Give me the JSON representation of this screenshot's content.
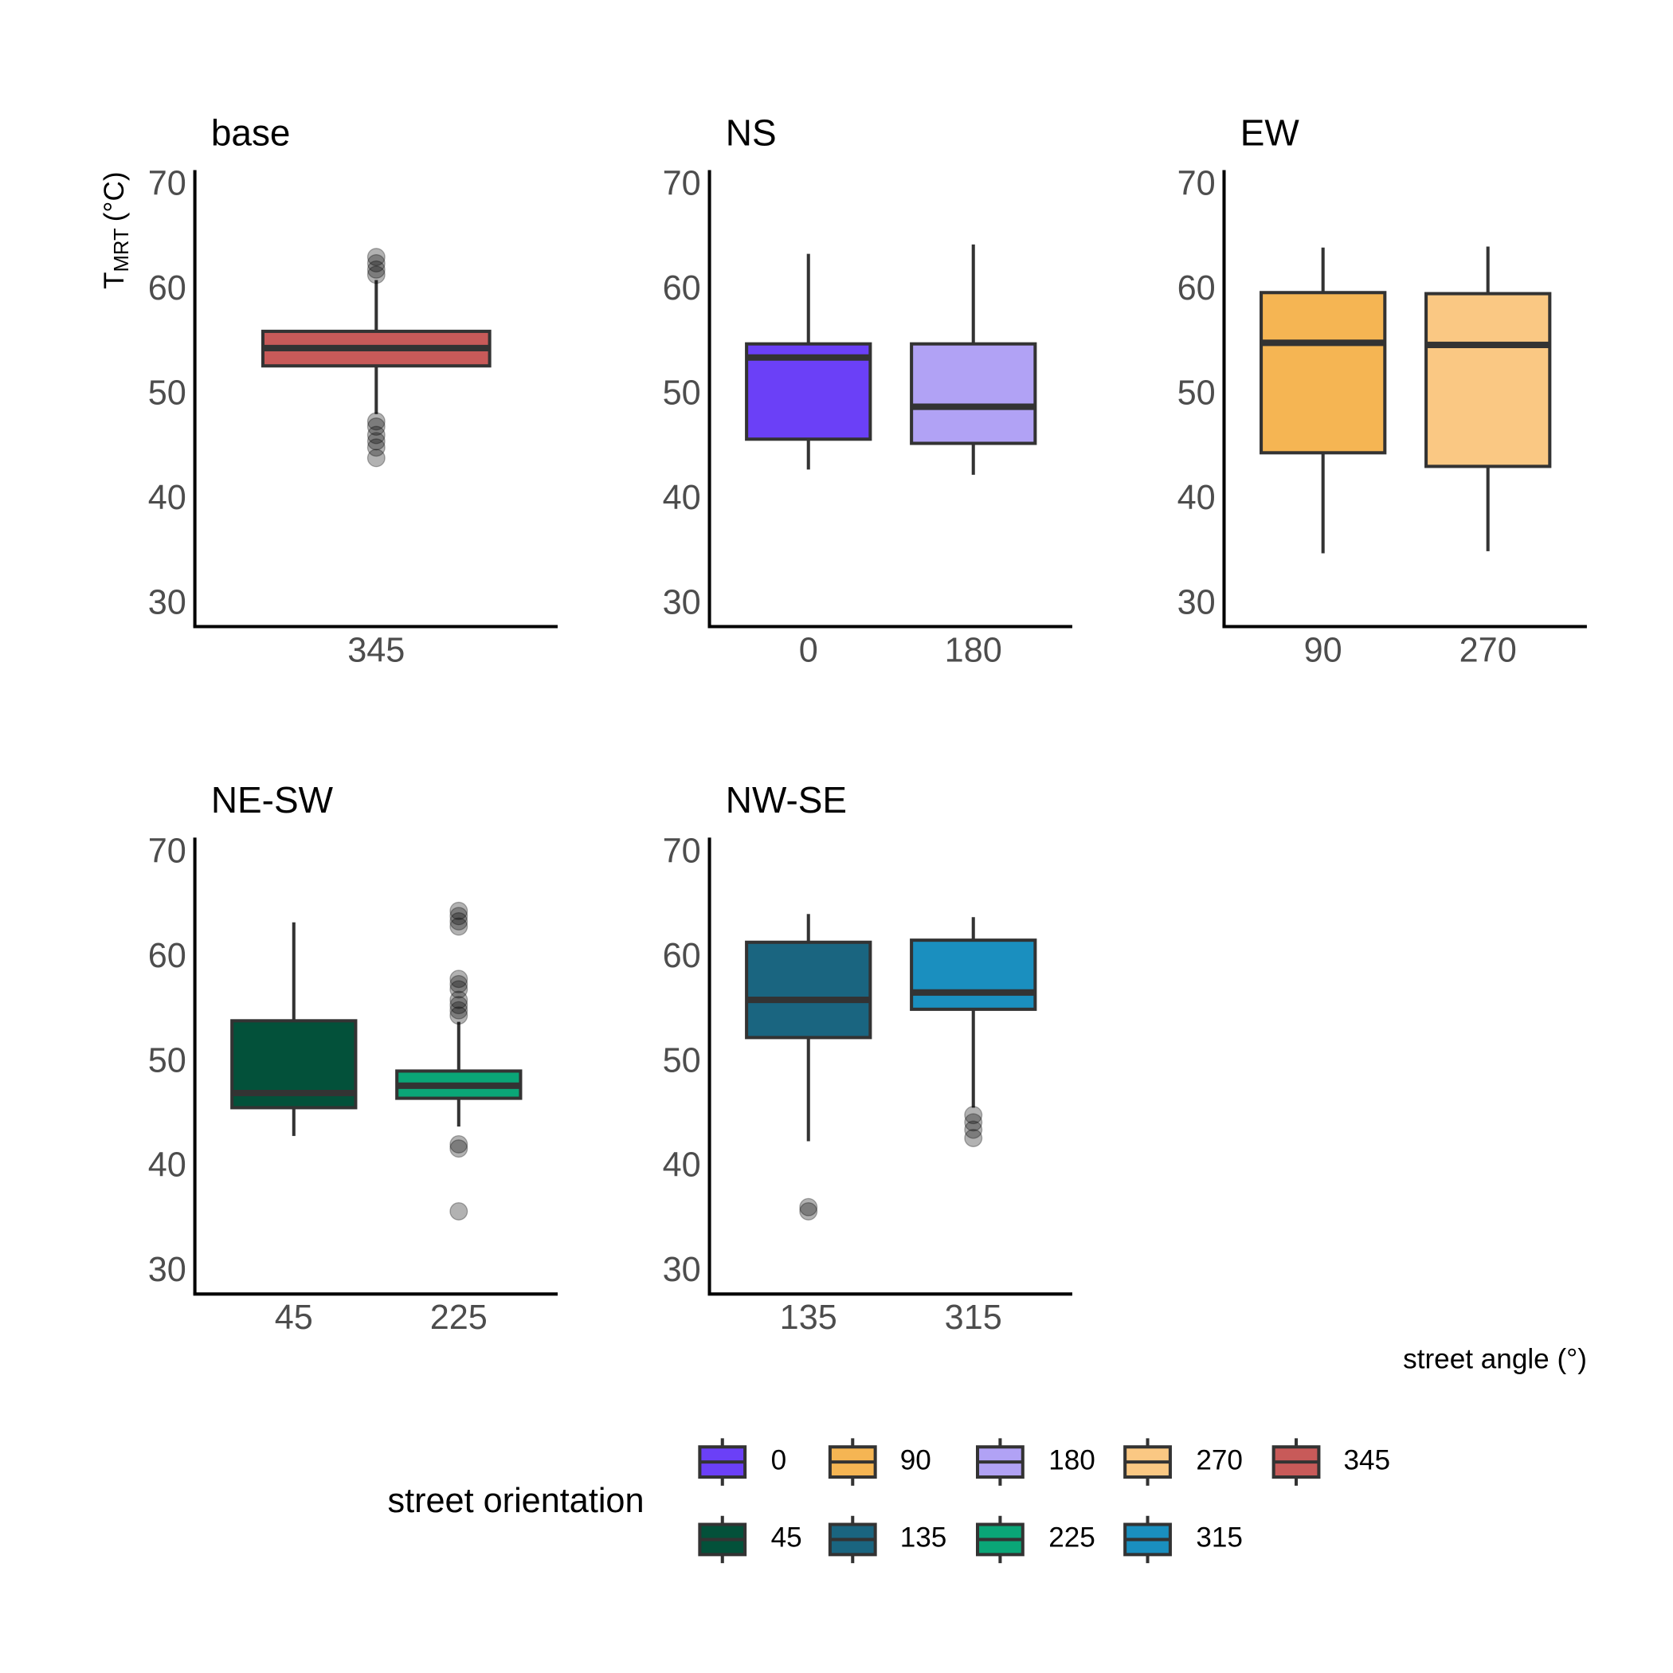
{
  "chart_data": [
    {
      "type": "box",
      "title": "base",
      "ylabel": {
        "text": "T",
        "subscript": "MRT",
        "unit": "(°C)"
      },
      "categories": [
        "345"
      ],
      "ylim": [
        27.9,
        71.5
      ],
      "yticks": [
        30,
        40,
        50,
        60,
        70
      ],
      "boxes": [
        {
          "color": "#c85a59",
          "min": 48.2,
          "q1": 52.8,
          "median": 54.5,
          "q3": 56.1,
          "max": 61.0,
          "outliers": [
            63.2,
            62.6,
            62.0,
            61.5,
            47.5,
            47.0,
            46.2,
            45.6,
            45.0,
            44.0
          ]
        }
      ]
    },
    {
      "type": "box",
      "title": "NS",
      "categories": [
        "0",
        "180"
      ],
      "ylim": [
        27.9,
        71.5
      ],
      "yticks": [
        30,
        40,
        50,
        60,
        70
      ],
      "boxes": [
        {
          "color": "#6b40f7",
          "min": 42.9,
          "q1": 45.8,
          "median": 53.6,
          "q3": 54.9,
          "max": 63.5,
          "outliers": []
        },
        {
          "color": "#b1a2f5",
          "min": 42.4,
          "q1": 45.4,
          "median": 48.9,
          "q3": 54.9,
          "max": 64.4,
          "outliers": []
        }
      ]
    },
    {
      "type": "box",
      "title": "EW",
      "categories": [
        "90",
        "270"
      ],
      "ylim": [
        27.9,
        71.5
      ],
      "yticks": [
        30,
        40,
        50,
        60,
        70
      ],
      "boxes": [
        {
          "color": "#f5b553",
          "min": 34.9,
          "q1": 44.5,
          "median": 55.0,
          "q3": 59.8,
          "max": 64.1,
          "outliers": []
        },
        {
          "color": "#fac883",
          "min": 35.1,
          "q1": 43.2,
          "median": 54.8,
          "q3": 59.7,
          "max": 64.2,
          "outliers": []
        }
      ]
    },
    {
      "type": "box",
      "title": "NE-SW",
      "categories": [
        "45",
        "225"
      ],
      "ylim": [
        27.9,
        71.5
      ],
      "yticks": [
        30,
        40,
        50,
        60,
        70
      ],
      "boxes": [
        {
          "color": "#03513a",
          "min": 43.0,
          "q1": 45.7,
          "median": 47.1,
          "q3": 54.0,
          "max": 63.4,
          "outliers": []
        },
        {
          "color": "#0aa677",
          "min": 43.9,
          "q1": 46.6,
          "median": 47.8,
          "q3": 49.2,
          "max": 53.9,
          "outliers": [
            64.5,
            64.0,
            63.5,
            63.0,
            58.0,
            57.5,
            57.0,
            56.0,
            55.5,
            55.0,
            54.5,
            42.2,
            41.8,
            35.8
          ]
        }
      ]
    },
    {
      "type": "box",
      "title": "NW-SE",
      "categories": [
        "135",
        "315"
      ],
      "ylim": [
        27.9,
        71.5
      ],
      "yticks": [
        30,
        40,
        50,
        60,
        70
      ],
      "boxes": [
        {
          "color": "#1a6580",
          "min": 42.5,
          "q1": 52.4,
          "median": 56.0,
          "q3": 61.5,
          "max": 64.2,
          "outliers": [
            36.2,
            35.8
          ]
        },
        {
          "color": "#1a8fbf",
          "min": 45.7,
          "q1": 55.1,
          "median": 56.7,
          "q3": 61.7,
          "max": 63.9,
          "outliers": [
            45.0,
            44.3,
            43.6,
            42.8
          ]
        }
      ]
    }
  ],
  "x_label": "street angle (°)",
  "legend": {
    "title": "street orientation",
    "items": [
      {
        "label": "0",
        "color": "#6b40f7"
      },
      {
        "label": "90",
        "color": "#f5b553"
      },
      {
        "label": "180",
        "color": "#b1a2f5"
      },
      {
        "label": "270",
        "color": "#fac883"
      },
      {
        "label": "345",
        "color": "#c85a59"
      },
      {
        "label": "45",
        "color": "#03513a"
      },
      {
        "label": "135",
        "color": "#1a6580"
      },
      {
        "label": "225",
        "color": "#0aa677"
      },
      {
        "label": "315",
        "color": "#1a8fbf"
      }
    ]
  }
}
